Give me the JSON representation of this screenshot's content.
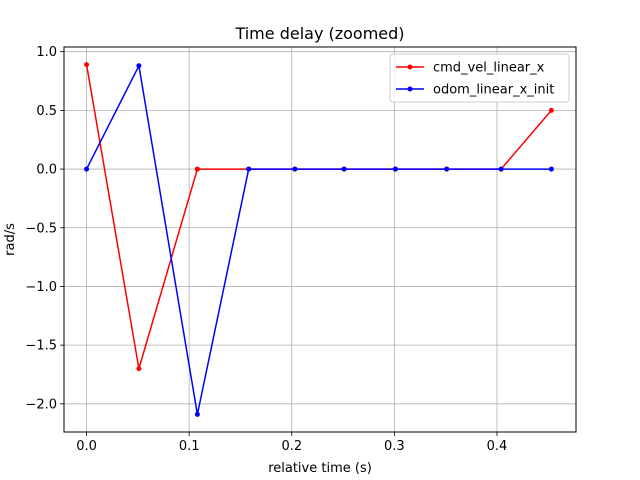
{
  "chart_data": {
    "type": "line",
    "title": "Time delay (zoomed)",
    "xlabel": "relative time (s)",
    "ylabel": "rad/s",
    "xlim": [
      -0.022,
      0.477
    ],
    "ylim": [
      -2.24,
      1.04
    ],
    "xticks": [
      0.0,
      0.1,
      0.2,
      0.3,
      0.4
    ],
    "xtick_labels": [
      "0.0",
      "0.1",
      "0.2",
      "0.3",
      "0.4"
    ],
    "yticks": [
      1.0,
      0.5,
      0.0,
      -0.5,
      -1.0,
      -1.5,
      -2.0
    ],
    "ytick_labels": [
      "1.0",
      "0.5",
      "0.0",
      "−0.5",
      "−1.0",
      "−1.5",
      "−2.0"
    ],
    "grid": true,
    "legend_position": "top-right",
    "series": [
      {
        "name": "cmd_vel_linear_x",
        "color": "#ff0000",
        "marker": "dot",
        "x": [
          0.0,
          0.051,
          0.108,
          0.158,
          0.203,
          0.251,
          0.301,
          0.351,
          0.404,
          0.453
        ],
        "y": [
          0.89,
          -1.7,
          0.0,
          0.0,
          0.0,
          0.0,
          0.0,
          0.0,
          0.0,
          0.5
        ]
      },
      {
        "name": "odom_linear_x_init",
        "color": "#0000ff",
        "marker": "dot",
        "x": [
          0.0,
          0.051,
          0.108,
          0.158,
          0.203,
          0.251,
          0.301,
          0.351,
          0.404,
          0.453
        ],
        "y": [
          0.0,
          0.88,
          -2.09,
          0.0,
          0.0,
          0.0,
          0.0,
          0.0,
          0.0,
          0.0
        ]
      }
    ]
  }
}
